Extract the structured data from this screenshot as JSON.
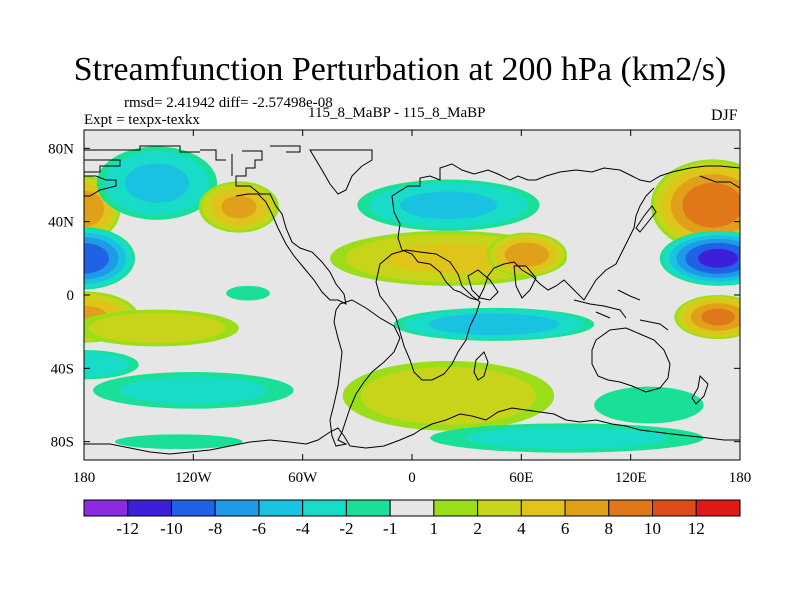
{
  "chart_data": {
    "type": "heatmap",
    "title": "Streamfunction Perturbation at 200 hPa (km2/s)",
    "stats": "rmsd= 2.41942 diff= -2.57498e-08",
    "left_label": "Expt = texpx-texkx",
    "center_label": "115_8_MaBP - 115_8_MaBP",
    "right_label": "DJF",
    "xlim": [
      -180,
      180
    ],
    "ylim": [
      -90,
      90
    ],
    "x_ticks": [
      {
        "value": -180,
        "label": "180"
      },
      {
        "value": -120,
        "label": "120W"
      },
      {
        "value": -60,
        "label": "60W"
      },
      {
        "value": 0,
        "label": "0"
      },
      {
        "value": 60,
        "label": "60E"
      },
      {
        "value": 120,
        "label": "120E"
      },
      {
        "value": 180,
        "label": "180"
      }
    ],
    "y_ticks": [
      {
        "value": 80,
        "label": "80N"
      },
      {
        "value": 40,
        "label": "40N"
      },
      {
        "value": 0,
        "label": "0"
      },
      {
        "value": -40,
        "label": "40S"
      },
      {
        "value": -80,
        "label": "80S"
      }
    ],
    "colorbar": {
      "colors": [
        "#8a2be2",
        "#3c1fd9",
        "#1f62e6",
        "#1f9ae6",
        "#19c2e0",
        "#19dcc8",
        "#19e096",
        "#e6e6e6",
        "#9ade19",
        "#c8d419",
        "#e0c419",
        "#e0a019",
        "#e07819",
        "#e04c19",
        "#e01919"
      ],
      "tick_labels": [
        "-12",
        "-10",
        "-8",
        "-6",
        "-4",
        "-2",
        "-1",
        "1",
        "2",
        "4",
        "6",
        "8",
        "10",
        "12"
      ]
    },
    "features": [
      {
        "lon": -180,
        "lat": 47,
        "rx": 20,
        "ry": 18,
        "value": 7
      },
      {
        "lon": -180,
        "lat": 20,
        "rx": 28,
        "ry": 17,
        "value": -9
      },
      {
        "lon": -180,
        "lat": -12,
        "rx": 30,
        "ry": 14,
        "value": 6
      },
      {
        "lon": -180,
        "lat": -38,
        "rx": 30,
        "ry": 8,
        "value": -3
      },
      {
        "lon": -140,
        "lat": 61,
        "rx": 33,
        "ry": 20,
        "value": -4
      },
      {
        "lon": -95,
        "lat": 48,
        "rx": 22,
        "ry": 14,
        "value": 6
      },
      {
        "lon": -140,
        "lat": -18,
        "rx": 45,
        "ry": 10,
        "value": 3
      },
      {
        "lon": -120,
        "lat": -52,
        "rx": 55,
        "ry": 10,
        "value": -2
      },
      {
        "lon": -128,
        "lat": -80,
        "rx": 35,
        "ry": 4,
        "value": -1.5
      },
      {
        "lon": -90,
        "lat": 1,
        "rx": 12,
        "ry": 4,
        "value": -1.5
      },
      {
        "lon": 20,
        "lat": 49,
        "rx": 50,
        "ry": 14,
        "value": -4
      },
      {
        "lon": 20,
        "lat": 20,
        "rx": 65,
        "ry": 15,
        "value": 4
      },
      {
        "lon": 63,
        "lat": 22,
        "rx": 22,
        "ry": 12,
        "value": 7
      },
      {
        "lon": 45,
        "lat": -16,
        "rx": 55,
        "ry": 9,
        "value": -5
      },
      {
        "lon": 20,
        "lat": -55,
        "rx": 58,
        "ry": 19,
        "value": 3
      },
      {
        "lon": 85,
        "lat": -78,
        "rx": 75,
        "ry": 8,
        "value": -2
      },
      {
        "lon": 130,
        "lat": -60,
        "rx": 30,
        "ry": 10,
        "value": -1.5
      },
      {
        "lon": 165,
        "lat": 49,
        "rx": 34,
        "ry": 25,
        "value": 9
      },
      {
        "lon": 168,
        "lat": 20,
        "rx": 32,
        "ry": 15,
        "value": -10
      },
      {
        "lon": 168,
        "lat": -12,
        "rx": 24,
        "ry": 12,
        "value": 8
      }
    ]
  }
}
